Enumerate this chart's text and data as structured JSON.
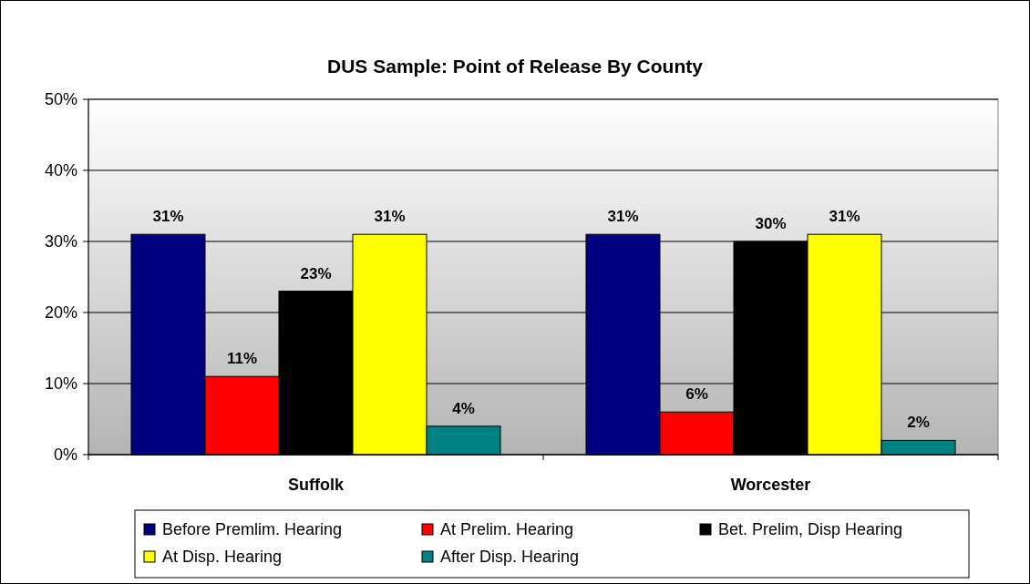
{
  "chart_data": {
    "type": "bar",
    "title": "DUS Sample:  Point of Release By County",
    "categories": [
      "Suffolk",
      "Worcester"
    ],
    "series": [
      {
        "name": "Before Premlim. Hearing",
        "color": "#000080",
        "values": [
          31,
          31
        ],
        "value_labels": [
          "31%",
          "31%"
        ]
      },
      {
        "name": "At Prelim. Hearing",
        "color": "#ff0000",
        "values": [
          11,
          6
        ],
        "value_labels": [
          "11%",
          "6%"
        ]
      },
      {
        "name": "Bet. Prelim, Disp Hearing",
        "color": "#000000",
        "values": [
          23,
          30
        ],
        "value_labels": [
          "23%",
          "30%"
        ]
      },
      {
        "name": "At Disp. Hearing",
        "color": "#ffff00",
        "values": [
          31,
          31
        ],
        "value_labels": [
          "31%",
          "31%"
        ]
      },
      {
        "name": "After Disp. Hearing",
        "color": "#008080",
        "values": [
          4,
          2
        ],
        "value_labels": [
          "4%",
          "2%"
        ]
      }
    ],
    "ylim": [
      0,
      50
    ],
    "yticks": [
      {
        "value": 0,
        "label": "0%"
      },
      {
        "value": 10,
        "label": "10%"
      },
      {
        "value": 20,
        "label": "20%"
      },
      {
        "value": 30,
        "label": "30%"
      },
      {
        "value": 40,
        "label": "40%"
      },
      {
        "value": 50,
        "label": "50%"
      }
    ],
    "grid": "y",
    "legend": "bottom"
  }
}
